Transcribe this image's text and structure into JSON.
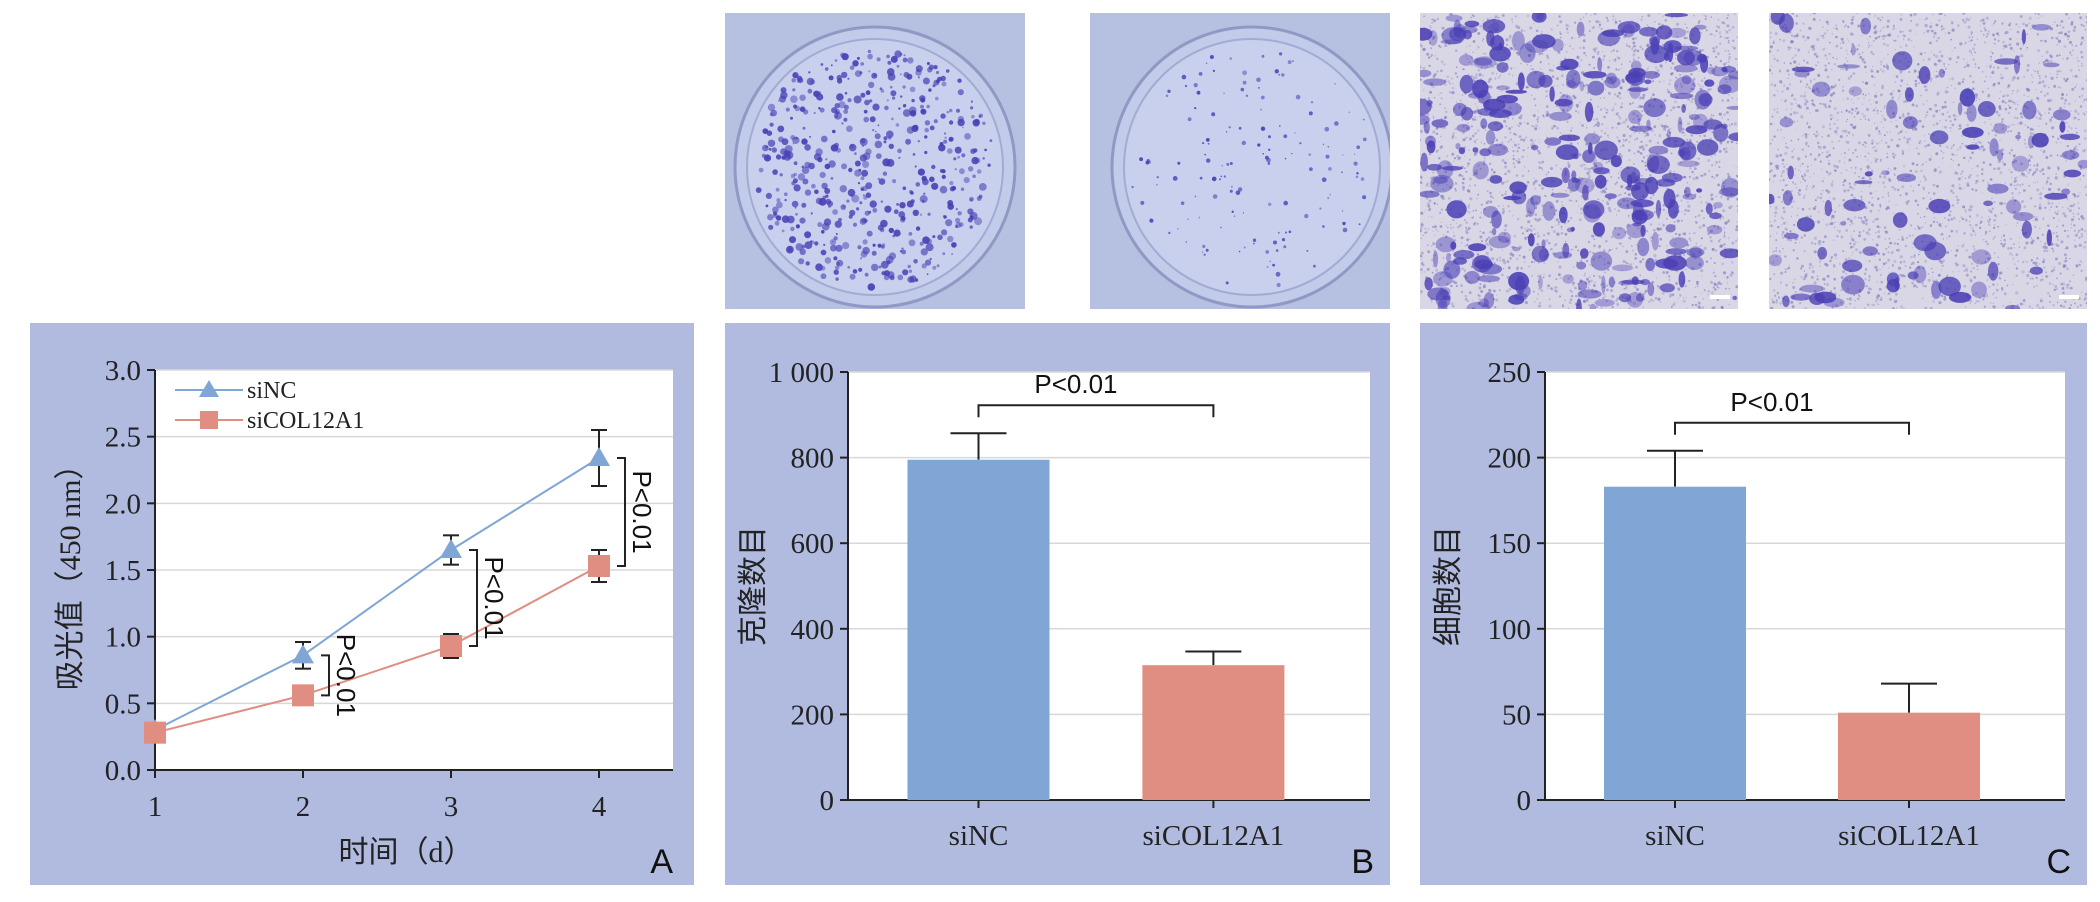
{
  "photos": [
    {
      "label": "",
      "kind": "dish",
      "density": "high"
    },
    {
      "label": "",
      "kind": "dish",
      "density": "low"
    },
    {
      "label": "",
      "kind": "transwell",
      "density": "high"
    },
    {
      "label": "",
      "kind": "transwell",
      "density": "low"
    }
  ],
  "colors": {
    "panel_bg": "#b0bbdf",
    "siNC": "#7fa6d4",
    "siCOL12A1": "#e08d82",
    "grid": "#d8d8d8",
    "stain": "#4a3fb5"
  },
  "chart_data": [
    {
      "panel": "A",
      "type": "line",
      "title": "",
      "xlabel": "时间（d）",
      "ylabel": "吸光值（450 nm）",
      "x": [
        1,
        2,
        3,
        4
      ],
      "x_tick_labels": [
        "1",
        "2",
        "3",
        "4"
      ],
      "xlim": [
        1,
        4.5
      ],
      "ylim": [
        0,
        3.0
      ],
      "y_ticks": [
        0,
        0.5,
        1.0,
        1.5,
        2.0,
        2.5,
        3.0
      ],
      "y_tick_labels": [
        "0.0",
        "0.5",
        "1.0",
        "1.5",
        "2.0",
        "2.5",
        "3.0"
      ],
      "grid": true,
      "legend": "top-left",
      "series": [
        {
          "name": "siNC",
          "marker": "triangle",
          "values": [
            0.3,
            0.86,
            1.65,
            2.34
          ],
          "errors": [
            0.04,
            0.1,
            0.11,
            0.21
          ]
        },
        {
          "name": "siCOL12A1",
          "marker": "square",
          "values": [
            0.28,
            0.56,
            0.93,
            1.53
          ],
          "errors": [
            0.03,
            0.05,
            0.09,
            0.12
          ]
        }
      ],
      "annotations": [
        {
          "x": 2,
          "text": "P<0.01"
        },
        {
          "x": 3,
          "text": "P<0.01"
        },
        {
          "x": 4,
          "text": "P<0.01"
        }
      ]
    },
    {
      "panel": "B",
      "type": "bar",
      "title": "",
      "xlabel": "",
      "ylabel": "克隆数目",
      "categories": [
        "siNC",
        "siCOL12A1"
      ],
      "values": [
        795,
        315
      ],
      "errors": [
        62,
        32
      ],
      "ylim": [
        0,
        1000
      ],
      "y_ticks": [
        0,
        200,
        400,
        600,
        800,
        1000
      ],
      "y_tick_labels": [
        "0",
        "200",
        "400",
        "600",
        "800",
        "1 000"
      ],
      "grid": true,
      "annotation": "P<0.01"
    },
    {
      "panel": "C",
      "type": "bar",
      "title": "",
      "xlabel": "",
      "ylabel": "细胞数目",
      "categories": [
        "siNC",
        "siCOL12A1"
      ],
      "values": [
        183,
        51
      ],
      "errors": [
        21,
        17
      ],
      "ylim": [
        0,
        250
      ],
      "y_ticks": [
        0,
        50,
        100,
        150,
        200,
        250
      ],
      "y_tick_labels": [
        "0",
        "50",
        "100",
        "150",
        "200",
        "250"
      ],
      "grid": true,
      "annotation": "P<0.01"
    }
  ]
}
